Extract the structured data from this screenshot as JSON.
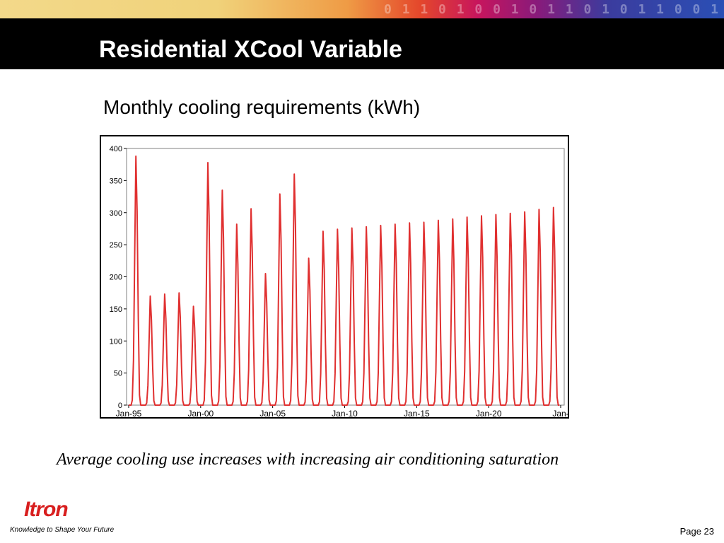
{
  "header": {
    "title": "Residential XCool Variable",
    "strip_digits": "0 1 1 0 1 0 0 1 0 1 1 0 1 0 1 1 0 0 1"
  },
  "subtitle": "Monthly cooling requirements (kWh)",
  "caption": "Average cooling use increases with increasing air conditioning saturation",
  "footer": {
    "logo_text": "Itron",
    "tagline": "Knowledge to Shape Your Future",
    "page": "Page 23"
  },
  "colors": {
    "series": "#e03030",
    "title_bar": "#000000",
    "logo": "#d81e1e"
  },
  "chart_data": {
    "type": "line",
    "title": "",
    "xlabel": "",
    "ylabel": "",
    "ylim": [
      0,
      400
    ],
    "yticks": [
      0,
      50,
      100,
      150,
      200,
      250,
      300,
      350,
      400
    ],
    "xticks": [
      "Jan-95",
      "Jan-00",
      "Jan-05",
      "Jan-10",
      "Jan-15",
      "Jan-20",
      "Jan-"
    ],
    "start_year": 1995,
    "end_year": 2025,
    "grid": false,
    "legend": "none",
    "series": [
      {
        "name": "",
        "annual_peaks": [
          388,
          170,
          173,
          175,
          154,
          378,
          335,
          282,
          306,
          205,
          329,
          360,
          229,
          271,
          274,
          276,
          278,
          280,
          282,
          284,
          285,
          288,
          290,
          293,
          295,
          297,
          299,
          301,
          305,
          308
        ]
      }
    ]
  }
}
